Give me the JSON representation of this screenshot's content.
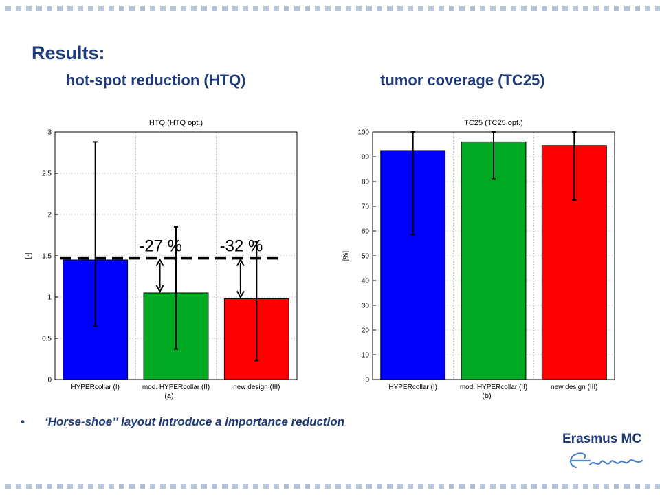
{
  "slide": {
    "title": "Results:",
    "subtitle_left": "hot-spot reduction (HTQ)",
    "subtitle_right": "tumor coverage (TC25)",
    "bullet": "‘Horse-shoe’’ layout introduce a importance reduction",
    "bullet_marker": "•",
    "logo_text": "Erasmus MC",
    "logo_signature": "Erasmus",
    "colors": {
      "heading": "#1f3a7a",
      "decor_dots": "#b8c4dc"
    }
  },
  "chart_data": [
    {
      "type": "bar",
      "title": "HTQ (HTQ opt.)",
      "xlabel": "(a)",
      "ylabel": "[-]",
      "ylim": [
        0,
        3
      ],
      "yticks": [
        0,
        0.5,
        1,
        1.5,
        2,
        2.5,
        3
      ],
      "ytick_labels": [
        "0",
        "0.5",
        "1",
        "1.5",
        "2",
        "2.5",
        "3"
      ],
      "grid": true,
      "categories": [
        "HYPERcollar (I)",
        "mod. HYPERcollar (II)",
        "new design (III)"
      ],
      "values": [
        1.45,
        1.05,
        0.98
      ],
      "errors_low": [
        0.65,
        0.37,
        0.23
      ],
      "errors_high": [
        2.88,
        1.85,
        1.67
      ],
      "bar_colors": [
        "#0000ff",
        "#00aa22",
        "#ff0000"
      ],
      "reference_line": 1.47,
      "annotations": [
        "-27 %",
        "-32 %"
      ]
    },
    {
      "type": "bar",
      "title": "TC25 (TC25 opt.)",
      "xlabel": "(b)",
      "ylabel": "[%]",
      "ylim": [
        0,
        100
      ],
      "yticks": [
        0,
        10,
        20,
        30,
        40,
        50,
        60,
        70,
        80,
        90,
        100
      ],
      "ytick_labels": [
        "0",
        "10",
        "20",
        "30",
        "40",
        "50",
        "60",
        "70",
        "80",
        "90",
        "100"
      ],
      "grid": true,
      "categories": [
        "HYPERcollar (I)",
        "mod. HYPERcollar (II)",
        "new design (III)"
      ],
      "values": [
        92.5,
        96,
        94.5
      ],
      "errors_low": [
        58.5,
        81,
        72.5
      ],
      "errors_high": [
        100,
        100,
        100
      ],
      "bar_colors": [
        "#0000ff",
        "#00aa22",
        "#ff0000"
      ]
    }
  ]
}
